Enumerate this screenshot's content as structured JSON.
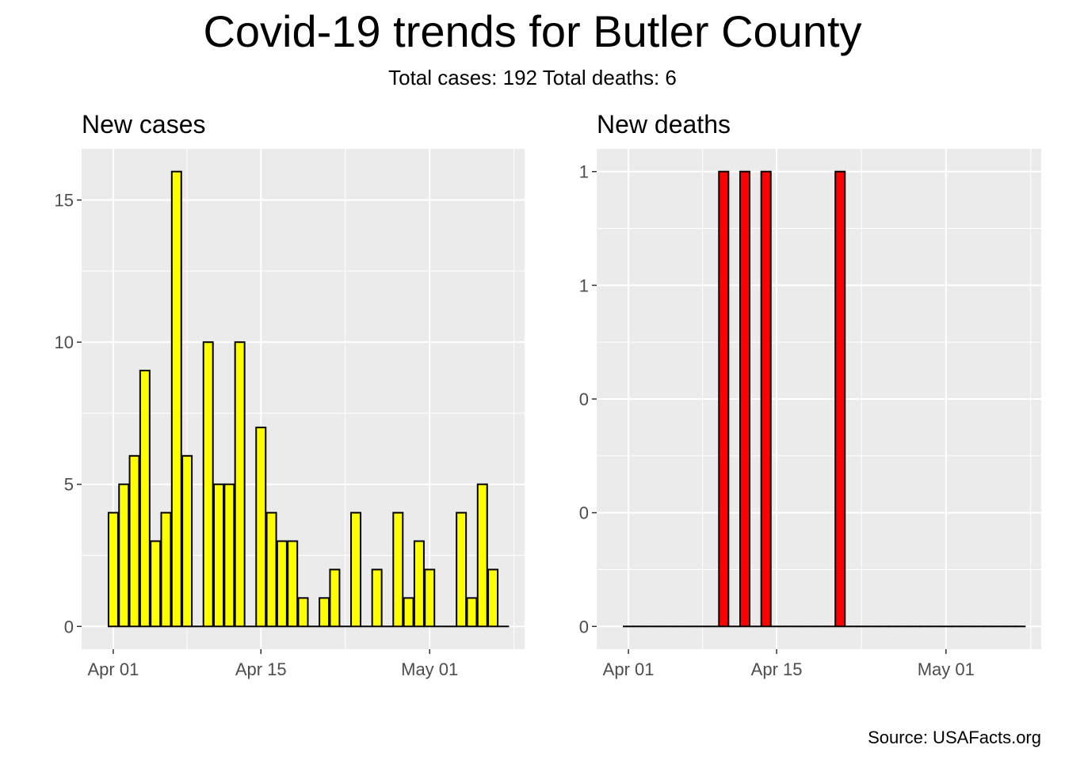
{
  "title": "Covid-19 trends for Butler County",
  "subtitle": "Total cases: 192  Total deaths: 6",
  "source": "Source: USAFacts.org",
  "chart_data": [
    {
      "type": "bar",
      "title": "New cases",
      "xlabel": "",
      "ylabel": "",
      "x_tick_labels": [
        "Apr 01",
        "Apr 15",
        "May 01"
      ],
      "x_tick_dates": [
        "2020-04-01",
        "2020-04-15",
        "2020-05-01"
      ],
      "y_tick_labels": [
        "0",
        "5",
        "10",
        "15"
      ],
      "ylim": [
        -0.8,
        16.8
      ],
      "xlim": [
        "2020-03-29",
        "2020-05-10"
      ],
      "grid": true,
      "bar_fill": "#ffff00",
      "bar_outline": "#000000",
      "dates": [
        "2020-04-01",
        "2020-04-02",
        "2020-04-03",
        "2020-04-04",
        "2020-04-05",
        "2020-04-06",
        "2020-04-07",
        "2020-04-08",
        "2020-04-09",
        "2020-04-10",
        "2020-04-11",
        "2020-04-12",
        "2020-04-13",
        "2020-04-14",
        "2020-04-15",
        "2020-04-16",
        "2020-04-17",
        "2020-04-18",
        "2020-04-19",
        "2020-04-20",
        "2020-04-21",
        "2020-04-22",
        "2020-04-23",
        "2020-04-24",
        "2020-04-25",
        "2020-04-26",
        "2020-04-27",
        "2020-04-28",
        "2020-04-29",
        "2020-04-30",
        "2020-05-01",
        "2020-05-02",
        "2020-05-03",
        "2020-05-04",
        "2020-05-05",
        "2020-05-06",
        "2020-05-07",
        "2020-05-08"
      ],
      "values": [
        4,
        5,
        6,
        9,
        3,
        4,
        16,
        6,
        0,
        10,
        5,
        5,
        10,
        0,
        7,
        4,
        3,
        3,
        1,
        0,
        1,
        2,
        0,
        4,
        0,
        2,
        0,
        4,
        1,
        3,
        2,
        0,
        0,
        4,
        1,
        5,
        2,
        0
      ]
    },
    {
      "type": "bar",
      "title": "New deaths",
      "xlabel": "",
      "ylabel": "",
      "x_tick_labels": [
        "Apr 01",
        "Apr 15",
        "May 01"
      ],
      "x_tick_dates": [
        "2020-04-01",
        "2020-04-15",
        "2020-05-01"
      ],
      "y_tick_labels": [
        "0",
        "0",
        "0",
        "1",
        "1"
      ],
      "y_tick_values": [
        0,
        0.25,
        0.5,
        0.75,
        1
      ],
      "ylim": [
        -0.05,
        1.05
      ],
      "xlim": [
        "2020-03-29",
        "2020-05-10"
      ],
      "grid": true,
      "bar_fill": "#ff0000",
      "bar_outline": "#000000",
      "dates": [
        "2020-04-01",
        "2020-04-02",
        "2020-04-03",
        "2020-04-04",
        "2020-04-05",
        "2020-04-06",
        "2020-04-07",
        "2020-04-08",
        "2020-04-09",
        "2020-04-10",
        "2020-04-11",
        "2020-04-12",
        "2020-04-13",
        "2020-04-14",
        "2020-04-15",
        "2020-04-16",
        "2020-04-17",
        "2020-04-18",
        "2020-04-19",
        "2020-04-20",
        "2020-04-21",
        "2020-04-22",
        "2020-04-23",
        "2020-04-24",
        "2020-04-25",
        "2020-04-26",
        "2020-04-27",
        "2020-04-28",
        "2020-04-29",
        "2020-04-30",
        "2020-05-01",
        "2020-05-02",
        "2020-05-03",
        "2020-05-04",
        "2020-05-05",
        "2020-05-06",
        "2020-05-07",
        "2020-05-08"
      ],
      "values": [
        0,
        0,
        0,
        0,
        0,
        0,
        0,
        0,
        0,
        1,
        0,
        1,
        0,
        1,
        0,
        0,
        0,
        0,
        0,
        0,
        1,
        0,
        0,
        0,
        0,
        0,
        0,
        0,
        0,
        0,
        0,
        0,
        0,
        0,
        0,
        0,
        0,
        0
      ]
    }
  ]
}
